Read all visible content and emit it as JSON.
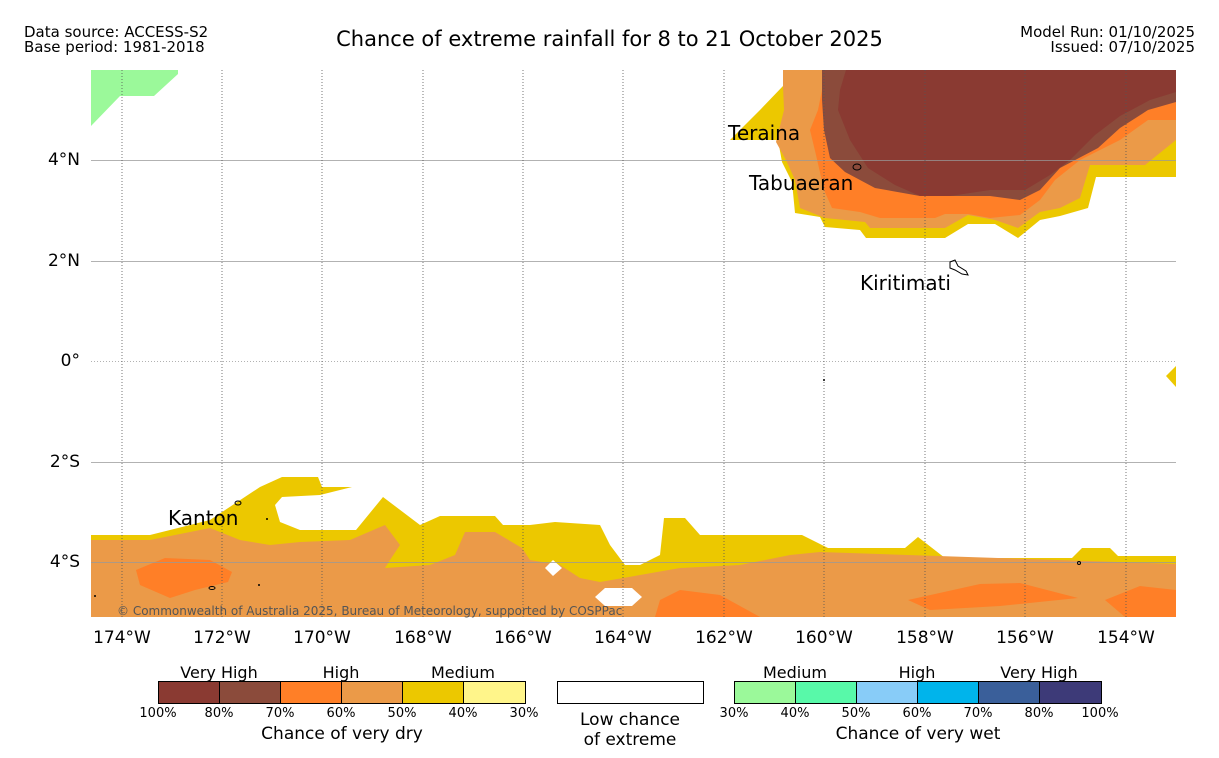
{
  "header": {
    "data_source": "Data source: ACCESS-S2",
    "base_period": "Base period: 1981-2018",
    "title": "Chance of extreme rainfall for 8 to 21 October 2025",
    "model_run": "Model Run: 01/10/2025",
    "issued": "Issued: 07/10/2025"
  },
  "map": {
    "lat_labels": [
      "4°N",
      "2°N",
      "0°",
      "2°S",
      "4°S"
    ],
    "lon_labels": [
      "174°W",
      "172°W",
      "170°W",
      "168°W",
      "166°W",
      "164°W",
      "162°W",
      "160°W",
      "158°W",
      "156°W",
      "154°W"
    ],
    "places": [
      "Teraina",
      "Tabuaeran",
      "Kiritimati",
      "Kanton"
    ],
    "copyright": "© Commonwealth of Australia 2025, Bureau of Meteorology, supported by COSPPac"
  },
  "legend": {
    "dry": {
      "headers": [
        "Very High",
        "High",
        "Medium"
      ],
      "colors": [
        "#8a3a32",
        "#8b4b3b",
        "#ff7f27",
        "#eb9a48",
        "#ecc800",
        "#fff58a"
      ],
      "ticks": [
        "100%",
        "80%",
        "70%",
        "60%",
        "50%",
        "40%",
        "30%"
      ],
      "caption": "Chance of very dry"
    },
    "low": {
      "line1": "Low chance",
      "line2": "of extreme"
    },
    "wet": {
      "headers": [
        "Medium",
        "High",
        "Very High"
      ],
      "colors": [
        "#9bf99a",
        "#58f9a9",
        "#88ccf8",
        "#00b4eb",
        "#3a5f9a",
        "#3d3a78"
      ],
      "ticks": [
        "30%",
        "40%",
        "50%",
        "60%",
        "70%",
        "80%",
        "100%"
      ],
      "caption": "Chance of very wet"
    }
  }
}
